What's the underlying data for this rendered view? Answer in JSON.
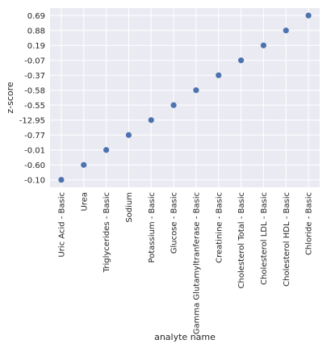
{
  "chart_data": {
    "type": "scatter",
    "xlabel": "analyte name",
    "ylabel": "z-score",
    "categories": [
      "Uric Acid - Basic",
      "Urea",
      "Triglycerides - Basic",
      "Sodium",
      "Potassium - Basic",
      "Glucose - Basic",
      "Gamma Glutamyltranferase - Basic",
      "Creatinine - Basic",
      "Cholesterol Total - Basic",
      "Cholesterol LDL - Basic",
      "Cholesterol HDL - Basic",
      "Chloride - Basic"
    ],
    "y_categories": [
      "-0.10",
      "-0.60",
      "-0.01",
      "-0.77",
      "-12.95",
      "-0.55",
      "-0.58",
      "-0.37",
      "-0.07",
      "0.19",
      "0.88",
      "0.69"
    ],
    "points": [
      {
        "x": "Uric Acid - Basic",
        "y": "-0.10"
      },
      {
        "x": "Urea",
        "y": "-0.60"
      },
      {
        "x": "Triglycerides - Basic",
        "y": "-0.01"
      },
      {
        "x": "Sodium",
        "y": "-0.77"
      },
      {
        "x": "Potassium - Basic",
        "y": "-12.95"
      },
      {
        "x": "Glucose - Basic",
        "y": "-0.55"
      },
      {
        "x": "Gamma Glutamyltranferase - Basic",
        "y": "-0.58"
      },
      {
        "x": "Creatinine - Basic",
        "y": "-0.37"
      },
      {
        "x": "Cholesterol Total - Basic",
        "y": "-0.07"
      },
      {
        "x": "Cholesterol LDL - Basic",
        "y": "0.19"
      },
      {
        "x": "Cholesterol HDL - Basic",
        "y": "0.88"
      },
      {
        "x": "Chloride - Basic",
        "y": "0.69"
      }
    ],
    "grid": true,
    "legend": "none",
    "colors": {
      "background": "#EAEAF2",
      "grid": "#FFFFFF",
      "marker": "#4C72B0",
      "text": "#262626"
    }
  }
}
